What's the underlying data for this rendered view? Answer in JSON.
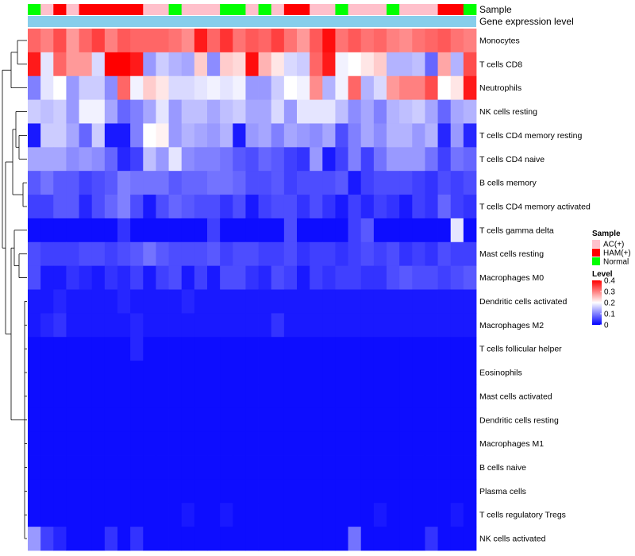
{
  "chart_data": {
    "type": "heatmap",
    "title": "",
    "annotation_labels": {
      "sample": "Sample",
      "expression": "Gene expression level"
    },
    "sample_groups": [
      "N",
      "A",
      "H",
      "A",
      "H",
      "H",
      "H",
      "H",
      "H",
      "A",
      "A",
      "N",
      "A",
      "A",
      "A",
      "N",
      "N",
      "A",
      "N",
      "A",
      "H",
      "H",
      "A",
      "A",
      "N",
      "A",
      "A",
      "A",
      "N",
      "A",
      "A",
      "A",
      "H",
      "H",
      "N"
    ],
    "row_labels": [
      "Monocytes",
      "T cells CD8",
      "Neutrophils",
      "NK cells resting",
      "T cells CD4 memory resting",
      "T cells CD4 naive",
      "B cells memory",
      "T cells CD4 memory activated",
      "T cells gamma delta",
      "Mast cells resting",
      "Macrophages M0",
      "Dendritic cells activated",
      "Macrophages M2",
      "T cells follicular helper",
      "Eosinophils",
      "Mast cells activated",
      "Dendritic cells resting",
      "Macrophages M1",
      "B cells naive",
      "Plasma cells",
      "T cells regulatory  Tregs",
      "NK cells activated"
    ],
    "values": [
      [
        0.32,
        0.3,
        0.34,
        0.28,
        0.32,
        0.35,
        0.3,
        0.33,
        0.32,
        0.32,
        0.32,
        0.31,
        0.29,
        0.38,
        0.32,
        0.36,
        0.31,
        0.33,
        0.32,
        0.35,
        0.31,
        0.28,
        0.33,
        0.39,
        0.31,
        0.33,
        0.31,
        0.32,
        0.3,
        0.29,
        0.31,
        0.32,
        0.33,
        0.31,
        0.3
      ],
      [
        0.38,
        0.18,
        0.32,
        0.28,
        0.28,
        0.17,
        0.4,
        0.4,
        0.38,
        0.12,
        0.16,
        0.14,
        0.13,
        0.24,
        0.11,
        0.24,
        0.23,
        0.39,
        0.26,
        0.22,
        0.17,
        0.16,
        0.32,
        0.38,
        0.19,
        0.2,
        0.22,
        0.24,
        0.14,
        0.14,
        0.15,
        0.08,
        0.27,
        0.14,
        0.34
      ],
      [
        0.1,
        0.18,
        0.2,
        0.12,
        0.16,
        0.16,
        0.11,
        0.32,
        0.19,
        0.24,
        0.22,
        0.17,
        0.17,
        0.18,
        0.19,
        0.18,
        0.19,
        0.12,
        0.12,
        0.16,
        0.2,
        0.19,
        0.29,
        0.14,
        0.19,
        0.32,
        0.14,
        0.17,
        0.28,
        0.3,
        0.3,
        0.34,
        0.2,
        0.22,
        0.38
      ],
      [
        0.16,
        0.15,
        0.16,
        0.12,
        0.19,
        0.19,
        0.13,
        0.08,
        0.1,
        0.13,
        0.18,
        0.12,
        0.15,
        0.15,
        0.13,
        0.15,
        0.16,
        0.13,
        0.13,
        0.17,
        0.12,
        0.18,
        0.18,
        0.18,
        0.15,
        0.11,
        0.13,
        0.1,
        0.14,
        0.15,
        0.16,
        0.13,
        0.08,
        0.13,
        0.14
      ],
      [
        0.02,
        0.16,
        0.16,
        0.13,
        0.08,
        0.16,
        0.02,
        0.02,
        0.1,
        0.2,
        0.21,
        0.12,
        0.14,
        0.13,
        0.12,
        0.14,
        0.02,
        0.12,
        0.13,
        0.1,
        0.13,
        0.12,
        0.11,
        0.13,
        0.06,
        0.1,
        0.13,
        0.11,
        0.14,
        0.14,
        0.12,
        0.14,
        0.03,
        0.12,
        0.03
      ],
      [
        0.13,
        0.13,
        0.13,
        0.11,
        0.12,
        0.11,
        0.08,
        0.03,
        0.05,
        0.15,
        0.12,
        0.18,
        0.11,
        0.1,
        0.1,
        0.09,
        0.07,
        0.06,
        0.08,
        0.07,
        0.05,
        0.04,
        0.12,
        0.02,
        0.05,
        0.1,
        0.05,
        0.09,
        0.12,
        0.12,
        0.12,
        0.09,
        0.05,
        0.09,
        0.08
      ],
      [
        0.07,
        0.09,
        0.07,
        0.07,
        0.05,
        0.06,
        0.07,
        0.1,
        0.09,
        0.09,
        0.09,
        0.07,
        0.08,
        0.08,
        0.09,
        0.09,
        0.08,
        0.06,
        0.06,
        0.07,
        0.05,
        0.06,
        0.06,
        0.06,
        0.07,
        0.02,
        0.05,
        0.06,
        0.06,
        0.06,
        0.05,
        0.04,
        0.06,
        0.05,
        0.06
      ],
      [
        0.05,
        0.05,
        0.07,
        0.07,
        0.03,
        0.06,
        0.08,
        0.1,
        0.06,
        0.02,
        0.06,
        0.08,
        0.07,
        0.06,
        0.06,
        0.04,
        0.06,
        0.02,
        0.05,
        0.06,
        0.06,
        0.04,
        0.06,
        0.04,
        0.02,
        0.05,
        0.03,
        0.05,
        0.04,
        0.02,
        0.05,
        0.04,
        0.08,
        0.05,
        0.04
      ],
      [
        0.01,
        0.01,
        0.01,
        0.01,
        0.01,
        0.01,
        0.01,
        0.04,
        0.01,
        0.01,
        0.01,
        0.01,
        0.01,
        0.01,
        0.05,
        0.01,
        0.01,
        0.01,
        0.01,
        0.01,
        0.06,
        0.01,
        0.01,
        0.01,
        0.01,
        0.05,
        0.07,
        0.01,
        0.01,
        0.01,
        0.01,
        0.01,
        0.01,
        0.18,
        0.01
      ],
      [
        0.06,
        0.05,
        0.05,
        0.05,
        0.06,
        0.06,
        0.05,
        0.06,
        0.07,
        0.09,
        0.07,
        0.06,
        0.06,
        0.06,
        0.07,
        0.05,
        0.06,
        0.06,
        0.05,
        0.05,
        0.06,
        0.04,
        0.05,
        0.05,
        0.04,
        0.05,
        0.06,
        0.05,
        0.06,
        0.04,
        0.05,
        0.04,
        0.06,
        0.05,
        0.05
      ],
      [
        0.06,
        0.02,
        0.02,
        0.04,
        0.03,
        0.02,
        0.04,
        0.03,
        0.05,
        0.02,
        0.05,
        0.06,
        0.02,
        0.05,
        0.02,
        0.06,
        0.06,
        0.04,
        0.03,
        0.06,
        0.05,
        0.02,
        0.05,
        0.04,
        0.05,
        0.05,
        0.04,
        0.04,
        0.06,
        0.07,
        0.06,
        0.06,
        0.05,
        0.06,
        0.07
      ],
      [
        0.02,
        0.02,
        0.03,
        0.02,
        0.02,
        0.02,
        0.02,
        0.03,
        0.02,
        0.02,
        0.02,
        0.02,
        0.03,
        0.02,
        0.02,
        0.02,
        0.02,
        0.02,
        0.02,
        0.02,
        0.02,
        0.02,
        0.02,
        0.02,
        0.02,
        0.02,
        0.02,
        0.02,
        0.02,
        0.02,
        0.02,
        0.02,
        0.02,
        0.02,
        0.02
      ],
      [
        0.02,
        0.03,
        0.04,
        0.02,
        0.02,
        0.02,
        0.02,
        0.02,
        0.03,
        0.02,
        0.02,
        0.02,
        0.02,
        0.02,
        0.02,
        0.02,
        0.02,
        0.02,
        0.02,
        0.04,
        0.02,
        0.02,
        0.02,
        0.02,
        0.02,
        0.02,
        0.02,
        0.02,
        0.02,
        0.02,
        0.02,
        0.02,
        0.02,
        0.02,
        0.02
      ],
      [
        0.01,
        0.01,
        0.01,
        0.01,
        0.01,
        0.01,
        0.01,
        0.01,
        0.03,
        0.01,
        0.01,
        0.01,
        0.01,
        0.01,
        0.01,
        0.01,
        0.01,
        0.01,
        0.01,
        0.01,
        0.01,
        0.01,
        0.01,
        0.01,
        0.01,
        0.01,
        0.01,
        0.01,
        0.01,
        0.01,
        0.01,
        0.01,
        0.01,
        0.01,
        0.01
      ],
      [
        0.01,
        0.01,
        0.01,
        0.01,
        0.01,
        0.01,
        0.01,
        0.01,
        0.01,
        0.01,
        0.01,
        0.01,
        0.01,
        0.01,
        0.01,
        0.01,
        0.01,
        0.01,
        0.01,
        0.01,
        0.01,
        0.01,
        0.01,
        0.01,
        0.01,
        0.01,
        0.01,
        0.01,
        0.01,
        0.01,
        0.01,
        0.01,
        0.01,
        0.01,
        0.01
      ],
      [
        0.01,
        0.01,
        0.01,
        0.01,
        0.01,
        0.01,
        0.01,
        0.01,
        0.01,
        0.01,
        0.01,
        0.01,
        0.01,
        0.01,
        0.01,
        0.01,
        0.01,
        0.01,
        0.01,
        0.01,
        0.01,
        0.01,
        0.01,
        0.01,
        0.01,
        0.01,
        0.01,
        0.01,
        0.01,
        0.01,
        0.01,
        0.01,
        0.01,
        0.01,
        0.01
      ],
      [
        0.01,
        0.01,
        0.01,
        0.01,
        0.01,
        0.01,
        0.01,
        0.01,
        0.01,
        0.01,
        0.01,
        0.01,
        0.01,
        0.01,
        0.01,
        0.01,
        0.01,
        0.01,
        0.01,
        0.01,
        0.01,
        0.01,
        0.01,
        0.01,
        0.01,
        0.01,
        0.01,
        0.01,
        0.01,
        0.01,
        0.01,
        0.01,
        0.01,
        0.01,
        0.01
      ],
      [
        0.01,
        0.01,
        0.01,
        0.01,
        0.01,
        0.01,
        0.01,
        0.01,
        0.01,
        0.01,
        0.01,
        0.01,
        0.01,
        0.01,
        0.01,
        0.01,
        0.01,
        0.01,
        0.01,
        0.01,
        0.01,
        0.01,
        0.01,
        0.01,
        0.01,
        0.01,
        0.01,
        0.01,
        0.01,
        0.01,
        0.01,
        0.01,
        0.01,
        0.01,
        0.01
      ],
      [
        0.01,
        0.01,
        0.01,
        0.01,
        0.01,
        0.01,
        0.01,
        0.01,
        0.01,
        0.01,
        0.01,
        0.01,
        0.01,
        0.01,
        0.01,
        0.01,
        0.01,
        0.01,
        0.01,
        0.01,
        0.01,
        0.01,
        0.01,
        0.01,
        0.01,
        0.01,
        0.01,
        0.01,
        0.01,
        0.01,
        0.01,
        0.01,
        0.01,
        0.01,
        0.01
      ],
      [
        0.01,
        0.01,
        0.01,
        0.01,
        0.01,
        0.01,
        0.01,
        0.01,
        0.01,
        0.01,
        0.01,
        0.01,
        0.01,
        0.01,
        0.01,
        0.01,
        0.01,
        0.01,
        0.01,
        0.01,
        0.01,
        0.01,
        0.01,
        0.01,
        0.01,
        0.01,
        0.01,
        0.01,
        0.01,
        0.01,
        0.01,
        0.01,
        0.01,
        0.01,
        0.01
      ],
      [
        0.01,
        0.01,
        0.01,
        0.01,
        0.01,
        0.01,
        0.01,
        0.01,
        0.01,
        0.01,
        0.01,
        0.01,
        0.02,
        0.01,
        0.01,
        0.02,
        0.01,
        0.01,
        0.01,
        0.01,
        0.01,
        0.01,
        0.01,
        0.01,
        0.01,
        0.01,
        0.01,
        0.02,
        0.01,
        0.01,
        0.01,
        0.01,
        0.01,
        0.02,
        0.01
      ],
      [
        0.12,
        0.05,
        0.03,
        0.01,
        0.01,
        0.01,
        0.04,
        0.01,
        0.04,
        0.01,
        0.01,
        0.01,
        0.01,
        0.01,
        0.01,
        0.01,
        0.01,
        0.01,
        0.01,
        0.01,
        0.01,
        0.01,
        0.01,
        0.01,
        0.01,
        0.09,
        0.01,
        0.01,
        0.01,
        0.01,
        0.01,
        0.04,
        0.01,
        0.01,
        0.01
      ]
    ],
    "color_scale": {
      "min": 0,
      "max": 0.4,
      "low": "#0000FF",
      "mid": "#FFFFFF",
      "high": "#FF0000"
    },
    "legend": {
      "sample_title": "Sample",
      "groups": [
        {
          "key": "A",
          "label": "AC(+)",
          "color": "#FFC0CB"
        },
        {
          "key": "H",
          "label": "HAM(+)",
          "color": "#FF0000"
        },
        {
          "key": "N",
          "label": "Normal",
          "color": "#00FF00"
        }
      ],
      "level_title": "Level",
      "level_ticks": [
        0.4,
        0.3,
        0.2,
        0.1,
        0
      ],
      "expression_bar_color": "#87CEEB"
    }
  }
}
